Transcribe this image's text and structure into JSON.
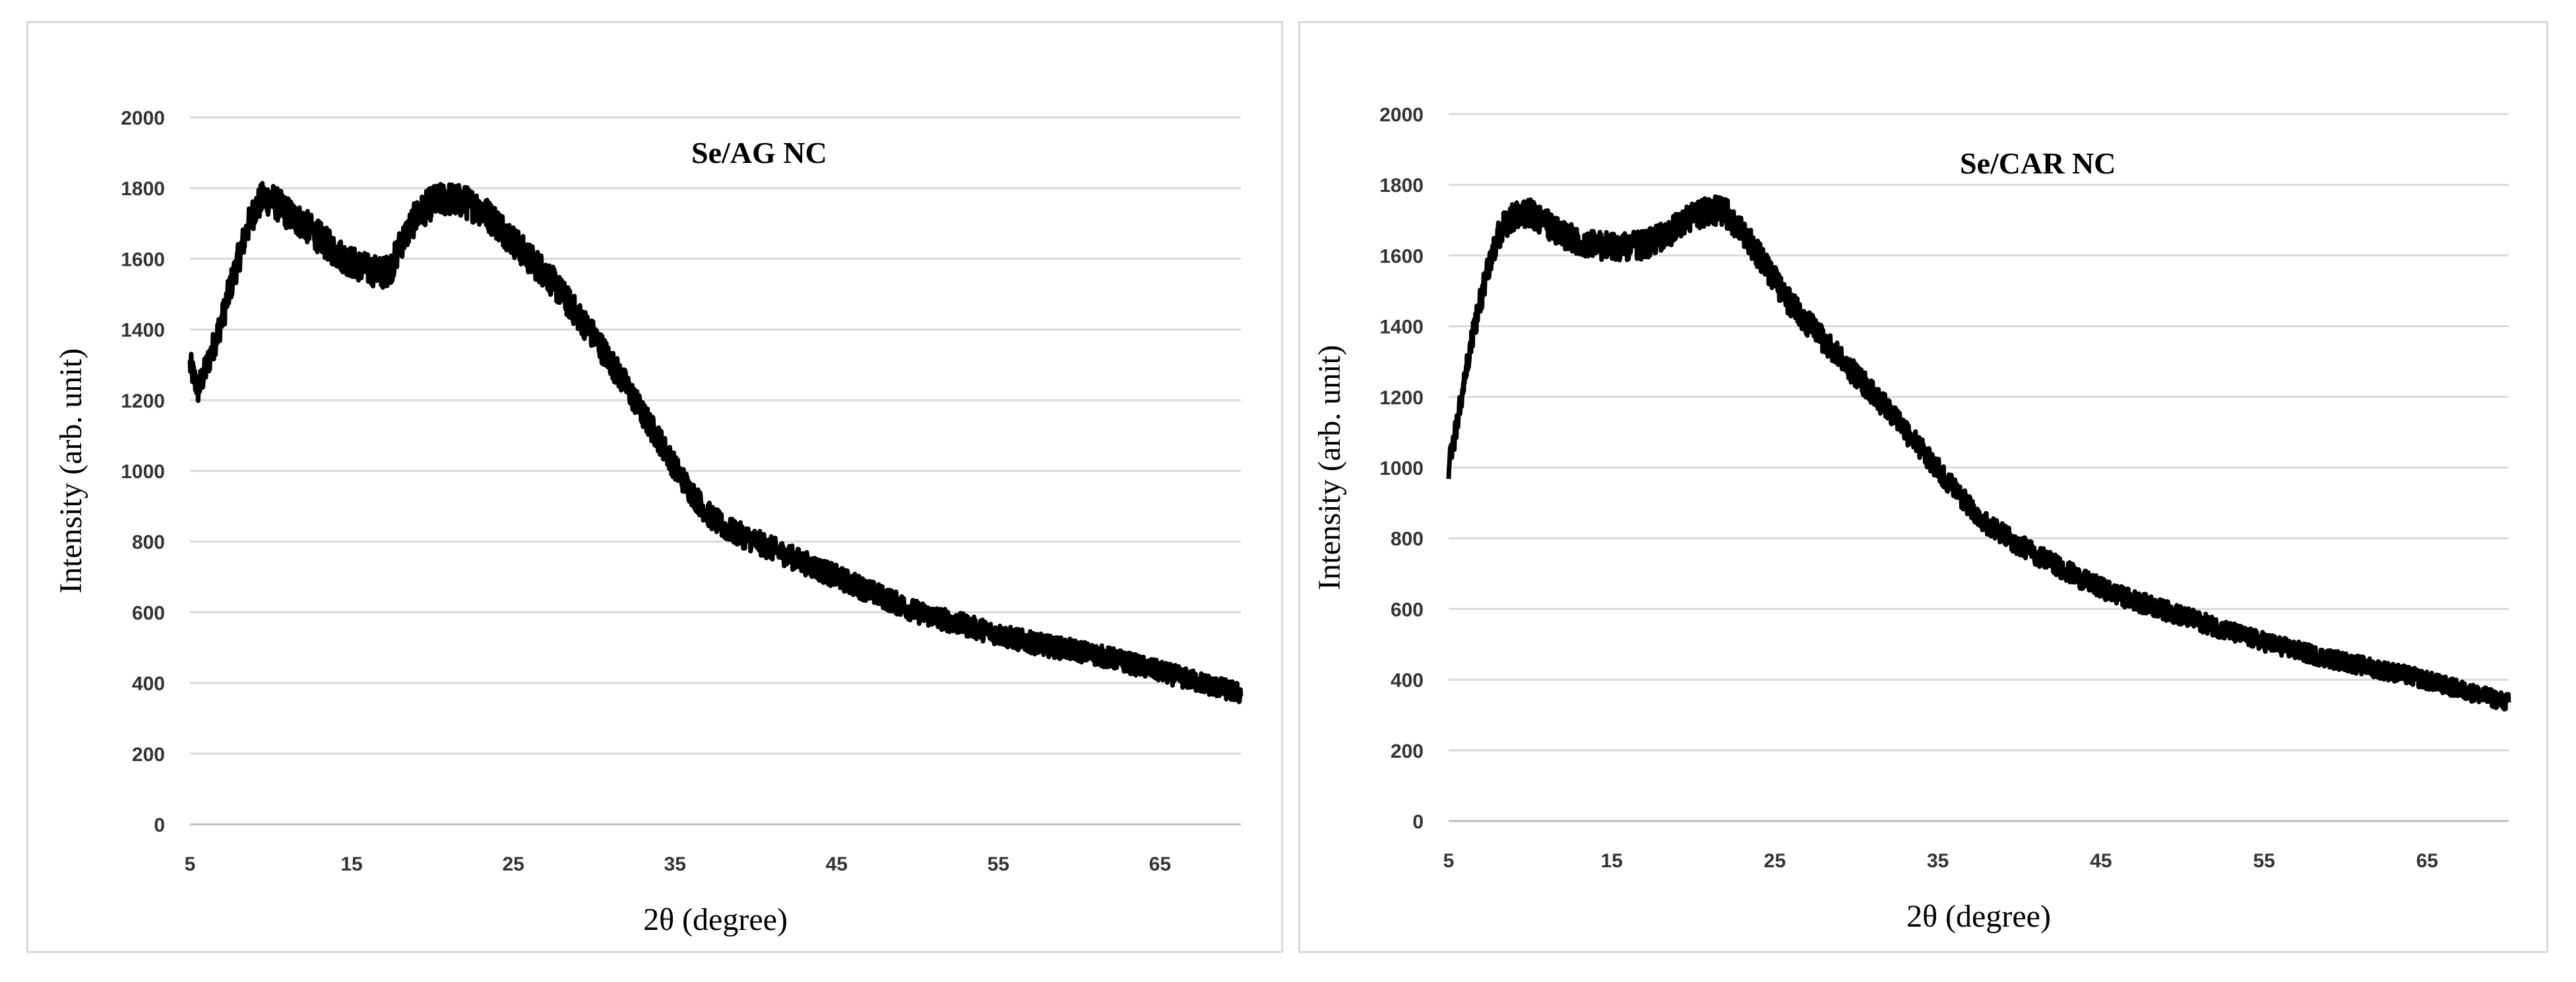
{
  "chart_data": [
    {
      "type": "line",
      "title": "Se/AG NC",
      "xlabel": "2θ (degree)",
      "ylabel": "Intensity (arb. unit)",
      "xlim": [
        5,
        70
      ],
      "ylim": [
        0,
        2000
      ],
      "x_ticks": [
        "5",
        "15",
        "25",
        "35",
        "45",
        "55",
        "65"
      ],
      "y_ticks": [
        "0",
        "200",
        "400",
        "600",
        "800",
        "1000",
        "1200",
        "1400",
        "1600",
        "1800",
        "2000"
      ],
      "grid": "horizontal",
      "legend": "none",
      "line_color": "#000000",
      "series": [
        {
          "x": [
            5,
            5.5,
            6,
            6.5,
            7,
            7.5,
            8,
            8.5,
            9,
            9.5,
            10,
            11,
            12,
            13,
            14,
            15,
            16,
            17,
            17.5,
            18,
            19,
            20,
            21,
            22,
            23,
            24,
            25,
            26,
            27,
            28,
            29,
            30,
            31,
            32,
            33,
            34,
            35,
            36,
            37,
            38,
            40,
            42,
            44,
            46,
            48,
            50,
            52,
            54,
            56,
            58,
            60,
            62,
            64,
            66,
            68,
            70
          ],
          "y": [
            1300,
            1230,
            1290,
            1360,
            1430,
            1520,
            1600,
            1680,
            1740,
            1770,
            1770,
            1730,
            1700,
            1660,
            1620,
            1590,
            1570,
            1560,
            1580,
            1640,
            1720,
            1760,
            1770,
            1760,
            1740,
            1700,
            1650,
            1600,
            1560,
            1500,
            1440,
            1380,
            1310,
            1240,
            1160,
            1090,
            1010,
            940,
            880,
            840,
            800,
            760,
            720,
            680,
            640,
            600,
            575,
            550,
            525,
            505,
            490,
            470,
            445,
            420,
            395,
            370
          ],
          "noise": 40
        }
      ]
    },
    {
      "type": "line",
      "title": "Se/CAR NC",
      "xlabel": "2θ (degree)",
      "ylabel": "Intensity (arb. unit)",
      "xlim": [
        5,
        70
      ],
      "ylim": [
        0,
        2000
      ],
      "x_ticks": [
        "5",
        "15",
        "25",
        "35",
        "45",
        "55",
        "65"
      ],
      "y_ticks": [
        "0",
        "200",
        "400",
        "600",
        "800",
        "1000",
        "1200",
        "1400",
        "1600",
        "1800",
        "2000"
      ],
      "grid": "horizontal",
      "legend": "none",
      "line_color": "#000000",
      "series": [
        {
          "x": [
            5,
            5.5,
            6,
            6.5,
            7,
            7.5,
            8,
            8.5,
            9,
            9.5,
            10,
            11,
            12,
            13,
            14,
            15,
            16,
            17,
            18,
            19,
            20,
            21,
            22,
            23,
            24,
            25,
            26,
            27,
            28,
            30,
            32,
            34,
            36,
            38,
            40,
            42,
            44,
            46,
            48,
            50,
            52,
            54,
            56,
            58,
            60,
            62,
            64,
            66,
            68,
            70
          ],
          "y": [
            1000,
            1120,
            1250,
            1380,
            1480,
            1580,
            1650,
            1690,
            1710,
            1720,
            1720,
            1690,
            1660,
            1640,
            1630,
            1625,
            1625,
            1630,
            1650,
            1680,
            1710,
            1730,
            1720,
            1670,
            1600,
            1530,
            1460,
            1410,
            1360,
            1260,
            1160,
            1050,
            940,
            840,
            780,
            730,
            680,
            640,
            610,
            580,
            550,
            520,
            495,
            470,
            450,
            430,
            410,
            385,
            360,
            335
          ],
          "noise": 35
        }
      ]
    }
  ]
}
